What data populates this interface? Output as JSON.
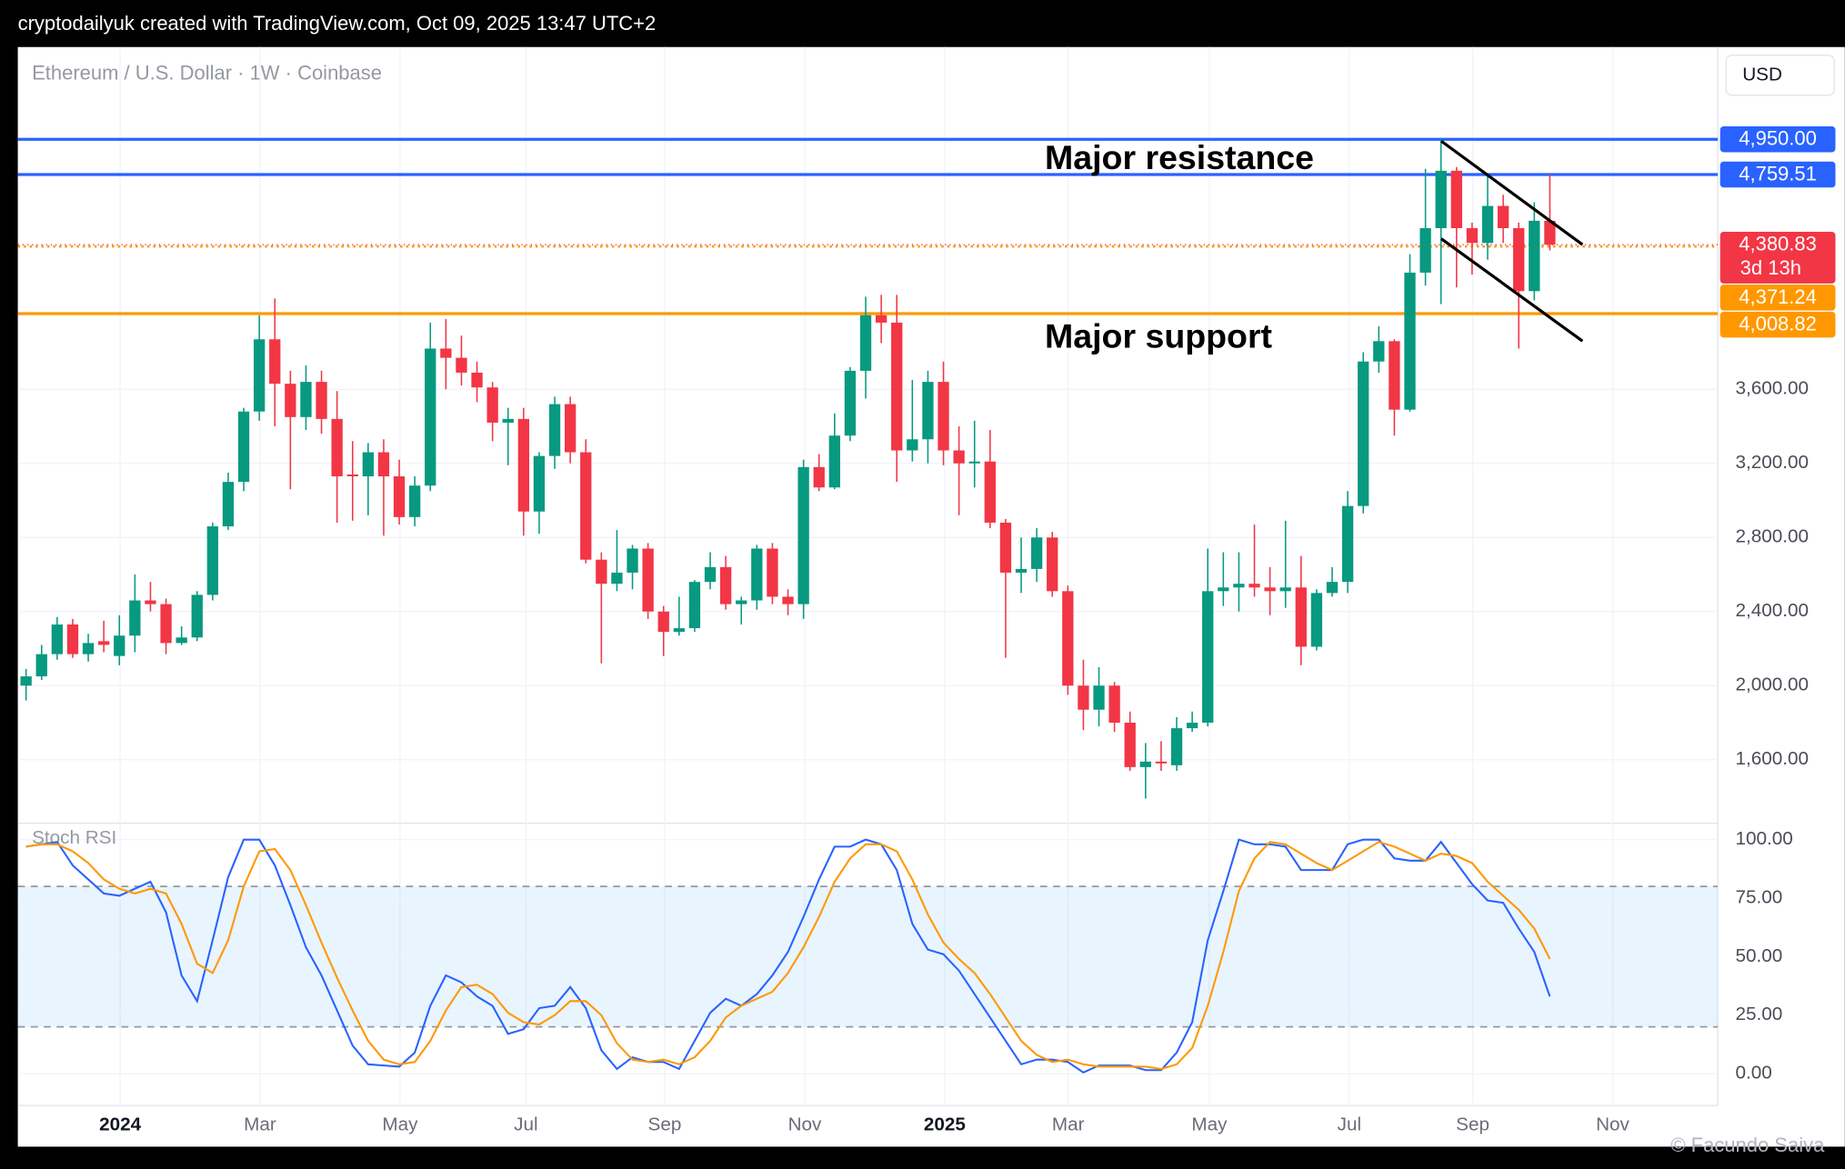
{
  "header": "cryptodailyuk created with TradingView.com, Oct 09, 2025 13:47 UTC+2",
  "watermark": "© Facundo Saiva",
  "chart_data": [
    {
      "type": "candlestick",
      "title": "Ethereum / U.S. Dollar · 1W · Coinbase",
      "currency": "USD",
      "up_color": "#089981",
      "down_color": "#f23645",
      "open": [
        2000,
        2050,
        2170,
        2330,
        2170,
        2240,
        2160,
        2270,
        2460,
        2440,
        2230,
        2260,
        2490,
        2860,
        3100,
        3480,
        3870,
        3630,
        3450,
        3640,
        3440,
        3140,
        3130,
        3260,
        3130,
        2910,
        3080,
        3820,
        3770,
        3690,
        3610,
        3420,
        3440,
        2940,
        3240,
        3520,
        3260,
        2680,
        2550,
        2610,
        2740,
        2400,
        2290,
        2310,
        2560,
        2640,
        2440,
        2460,
        2740,
        2480,
        2440,
        3180,
        3070,
        3350,
        3700,
        4000,
        3960,
        3270,
        3330,
        3640,
        3270,
        3200,
        3210,
        2880,
        2610,
        2630,
        2800,
        2510,
        2000,
        1870,
        2000,
        1800,
        1560,
        1590,
        1570,
        1770,
        1800,
        2510,
        2530,
        2550,
        2530,
        2510,
        2530,
        2210,
        2500,
        2560,
        2970,
        3750,
        3860,
        3490,
        4230,
        4470,
        4780,
        4470,
        4390,
        4590,
        4470,
        4130,
        4510
      ],
      "high": [
        2090,
        2220,
        2370,
        2360,
        2280,
        2350,
        2380,
        2600,
        2560,
        2470,
        2320,
        2510,
        2880,
        3150,
        3500,
        4000,
        4090,
        3700,
        3730,
        3700,
        3590,
        3320,
        3310,
        3330,
        3220,
        3130,
        3960,
        3980,
        3890,
        3750,
        3640,
        3500,
        3500,
        3260,
        3560,
        3560,
        3330,
        2720,
        2840,
        2760,
        2770,
        2430,
        2480,
        2570,
        2720,
        2700,
        2480,
        2760,
        2770,
        2520,
        3220,
        3250,
        3470,
        3720,
        4100,
        4110,
        4110,
        3650,
        3700,
        3750,
        3400,
        3430,
        3380,
        2900,
        2800,
        2850,
        2830,
        2540,
        2140,
        2100,
        2020,
        1860,
        1690,
        1700,
        1830,
        1860,
        2740,
        2720,
        2720,
        2870,
        2640,
        2890,
        2700,
        2520,
        2640,
        3050,
        3800,
        3940,
        3870,
        4330,
        4790,
        4950,
        4800,
        4500,
        4760,
        4650,
        4500,
        4610,
        4760
      ],
      "low": [
        1920,
        2030,
        2140,
        2150,
        2130,
        2180,
        2110,
        2180,
        2400,
        2170,
        2220,
        2240,
        2460,
        2840,
        3050,
        3430,
        3400,
        3060,
        3380,
        3360,
        2880,
        2890,
        2920,
        2810,
        2870,
        2860,
        3050,
        3600,
        3620,
        3530,
        3320,
        3190,
        2810,
        2820,
        3170,
        3200,
        2660,
        2120,
        2510,
        2520,
        2360,
        2160,
        2270,
        2290,
        2520,
        2410,
        2330,
        2410,
        2440,
        2380,
        2360,
        3050,
        3060,
        3320,
        3550,
        3850,
        3100,
        3210,
        3200,
        3190,
        2920,
        3070,
        2850,
        2150,
        2500,
        2560,
        2480,
        1950,
        1760,
        1780,
        1750,
        1540,
        1390,
        1540,
        1540,
        1750,
        1780,
        2430,
        2400,
        2480,
        2380,
        2420,
        2110,
        2190,
        2480,
        2500,
        2930,
        3690,
        3350,
        3480,
        4160,
        4060,
        4150,
        4220,
        4300,
        4390,
        3820,
        4080,
        4350
      ],
      "close": [
        2050,
        2170,
        2330,
        2170,
        2230,
        2220,
        2270,
        2460,
        2440,
        2230,
        2260,
        2490,
        2860,
        3100,
        3480,
        3870,
        3630,
        3450,
        3640,
        3440,
        3130,
        3130,
        3260,
        3130,
        2910,
        3080,
        3820,
        3770,
        3690,
        3610,
        3420,
        3440,
        2940,
        3240,
        3520,
        3260,
        2680,
        2550,
        2610,
        2740,
        2400,
        2290,
        2310,
        2560,
        2640,
        2440,
        2460,
        2740,
        2480,
        2440,
        3180,
        3070,
        3350,
        3700,
        4000,
        3960,
        3270,
        3330,
        3640,
        3270,
        3200,
        3210,
        2880,
        2610,
        2630,
        2800,
        2510,
        2000,
        1870,
        2000,
        1800,
        1560,
        1590,
        1580,
        1770,
        1800,
        2510,
        2530,
        2550,
        2530,
        2510,
        2530,
        2210,
        2500,
        2560,
        2970,
        3750,
        3860,
        3490,
        4230,
        4470,
        4780,
        4470,
        4390,
        4590,
        4470,
        4130,
        4510,
        4380.83
      ],
      "xlim": [
        -0.53,
        108.8
      ],
      "xticks": [
        {
          "value": 6.05,
          "label": "2024"
        },
        {
          "value": 15.05,
          "label": "Mar"
        },
        {
          "value": 24.05,
          "label": "May"
        },
        {
          "value": 32.15,
          "label": "Jul"
        },
        {
          "value": 41.07,
          "label": "Sep"
        },
        {
          "value": 50.08,
          "label": "Nov"
        },
        {
          "value": 59.08,
          "label": "2025"
        },
        {
          "value": 67.02,
          "label": "Mar"
        },
        {
          "value": 76.1,
          "label": "May"
        },
        {
          "value": 85.1,
          "label": "Jul"
        },
        {
          "value": 93.04,
          "label": "Sep"
        },
        {
          "value": 102.04,
          "label": "Nov"
        }
      ],
      "ylim": [
        1276,
        5448
      ],
      "yticks": [
        {
          "value": 1600,
          "label": "1,600.00"
        },
        {
          "value": 2000,
          "label": "2,000.00"
        },
        {
          "value": 2400,
          "label": "2,400.00"
        },
        {
          "value": 2800,
          "label": "2,800.00"
        },
        {
          "value": 3200,
          "label": "3,200.00"
        },
        {
          "value": 3600,
          "label": "3,600.00"
        }
      ],
      "grid": true,
      "levels": [
        {
          "value": 4950,
          "label": "4,950.00",
          "color": "#2962ff",
          "style": "solid"
        },
        {
          "value": 4759.51,
          "label": "4,759.51",
          "color": "#2962ff",
          "style": "solid"
        },
        {
          "value": 4371.24,
          "label": "4,371.24",
          "color": "#ff9800",
          "style": "dotted"
        },
        {
          "value": 4008.82,
          "label": "4,008.82",
          "color": "#ff9800",
          "style": "solid"
        }
      ],
      "current": {
        "value": 4380.83,
        "label": "4,380.83",
        "countdown": "3d 13h",
        "color": "#f23645"
      },
      "annotations": [
        {
          "text": "Major resistance"
        },
        {
          "text": "Major support"
        }
      ]
    },
    {
      "type": "line",
      "title": "Stoch RSI",
      "series": [
        {
          "color": "#2962ff",
          "values": [
            97,
            98,
            99,
            89,
            83,
            77,
            76,
            79,
            82,
            69,
            42,
            31,
            57,
            84,
            100,
            100,
            89,
            72,
            54,
            42,
            27,
            12,
            4,
            3.5,
            3,
            9,
            29,
            42,
            39,
            33,
            29,
            17,
            19,
            28,
            29,
            37,
            28,
            10,
            2,
            7,
            5,
            5,
            2,
            14,
            26,
            32,
            29,
            34,
            42,
            52,
            67,
            83,
            97,
            97,
            100,
            98,
            87,
            64,
            53,
            51,
            44,
            34,
            24,
            14,
            4,
            6,
            6,
            5,
            0.5,
            3.5,
            3.5,
            3.5,
            1.5,
            1.5,
            9,
            22,
            57,
            78,
            100,
            98,
            98,
            97,
            87,
            87,
            87,
            98,
            100,
            100,
            92,
            91,
            91,
            99,
            90,
            81,
            74,
            73,
            62,
            52,
            33
          ]
        },
        {
          "color": "#ff9800",
          "values": [
            97,
            98,
            98,
            95,
            90,
            83,
            79,
            77,
            79,
            77,
            64,
            47,
            43,
            57,
            80,
            95,
            96,
            87,
            72,
            56,
            41,
            27,
            14,
            6,
            4,
            5,
            14,
            27,
            37,
            38,
            34,
            26,
            22,
            21,
            25,
            31,
            31,
            25,
            13,
            6,
            5,
            6,
            4,
            7,
            14,
            24,
            29,
            32,
            35,
            43,
            54,
            67,
            82,
            92,
            98,
            98,
            95,
            83,
            68,
            56,
            49,
            43,
            34,
            24,
            14,
            8,
            5,
            6,
            4,
            3,
            3,
            3,
            3,
            2,
            4,
            11,
            29,
            52,
            78,
            92,
            99,
            98,
            94,
            90,
            87,
            91,
            95,
            99,
            97,
            94,
            91,
            94,
            93,
            90,
            82,
            76,
            70,
            62,
            49
          ]
        }
      ],
      "ylim": [
        -13.6,
        107
      ],
      "yticks": [
        {
          "value": 0,
          "label": "0.00"
        },
        {
          "value": 25,
          "label": "25.00"
        },
        {
          "value": 50,
          "label": "50.00"
        },
        {
          "value": 75,
          "label": "75.00"
        },
        {
          "value": 100,
          "label": "100.00"
        }
      ],
      "bands": [
        20,
        80
      ],
      "band_color": "#2196f3"
    }
  ]
}
